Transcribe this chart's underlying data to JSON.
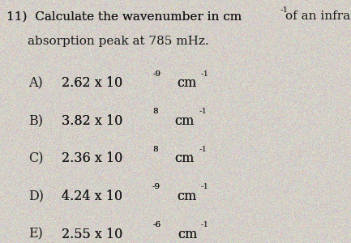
{
  "background_color": "#d4cfc8",
  "text_color": "#1a1a1a",
  "title_line1": "11)  Calculate the wavenumber in cm",
  "title_line1_sup": "-1",
  "title_line1_end": "of an infrared",
  "title_line2": "absorption peak at 785 mHz.",
  "options": [
    {
      "label": "A)",
      "main": "2.62 x 10",
      "exp": "-9",
      "unit": "cm",
      "unit_exp": "-1"
    },
    {
      "label": "B)",
      "main": "3.82 x 10",
      "exp": "8",
      "unit": "cm",
      "unit_exp": "-1"
    },
    {
      "label": "C)",
      "main": "2.36 x 10",
      "exp": "8",
      "unit": "cm",
      "unit_exp": "-1"
    },
    {
      "label": "D)",
      "main": "4.24 x 10",
      "exp": "-9",
      "unit": "cm",
      "unit_exp": "-1"
    },
    {
      "label": "E)",
      "main": "2.55 x 10",
      "exp": "-6",
      "unit": "cm",
      "unit_exp": "-1"
    }
  ],
  "font_size_title": 11.0,
  "font_size_options": 11.5,
  "font_size_super": 7.5,
  "fig_width": 4.33,
  "fig_height": 3.0,
  "dpi": 100
}
